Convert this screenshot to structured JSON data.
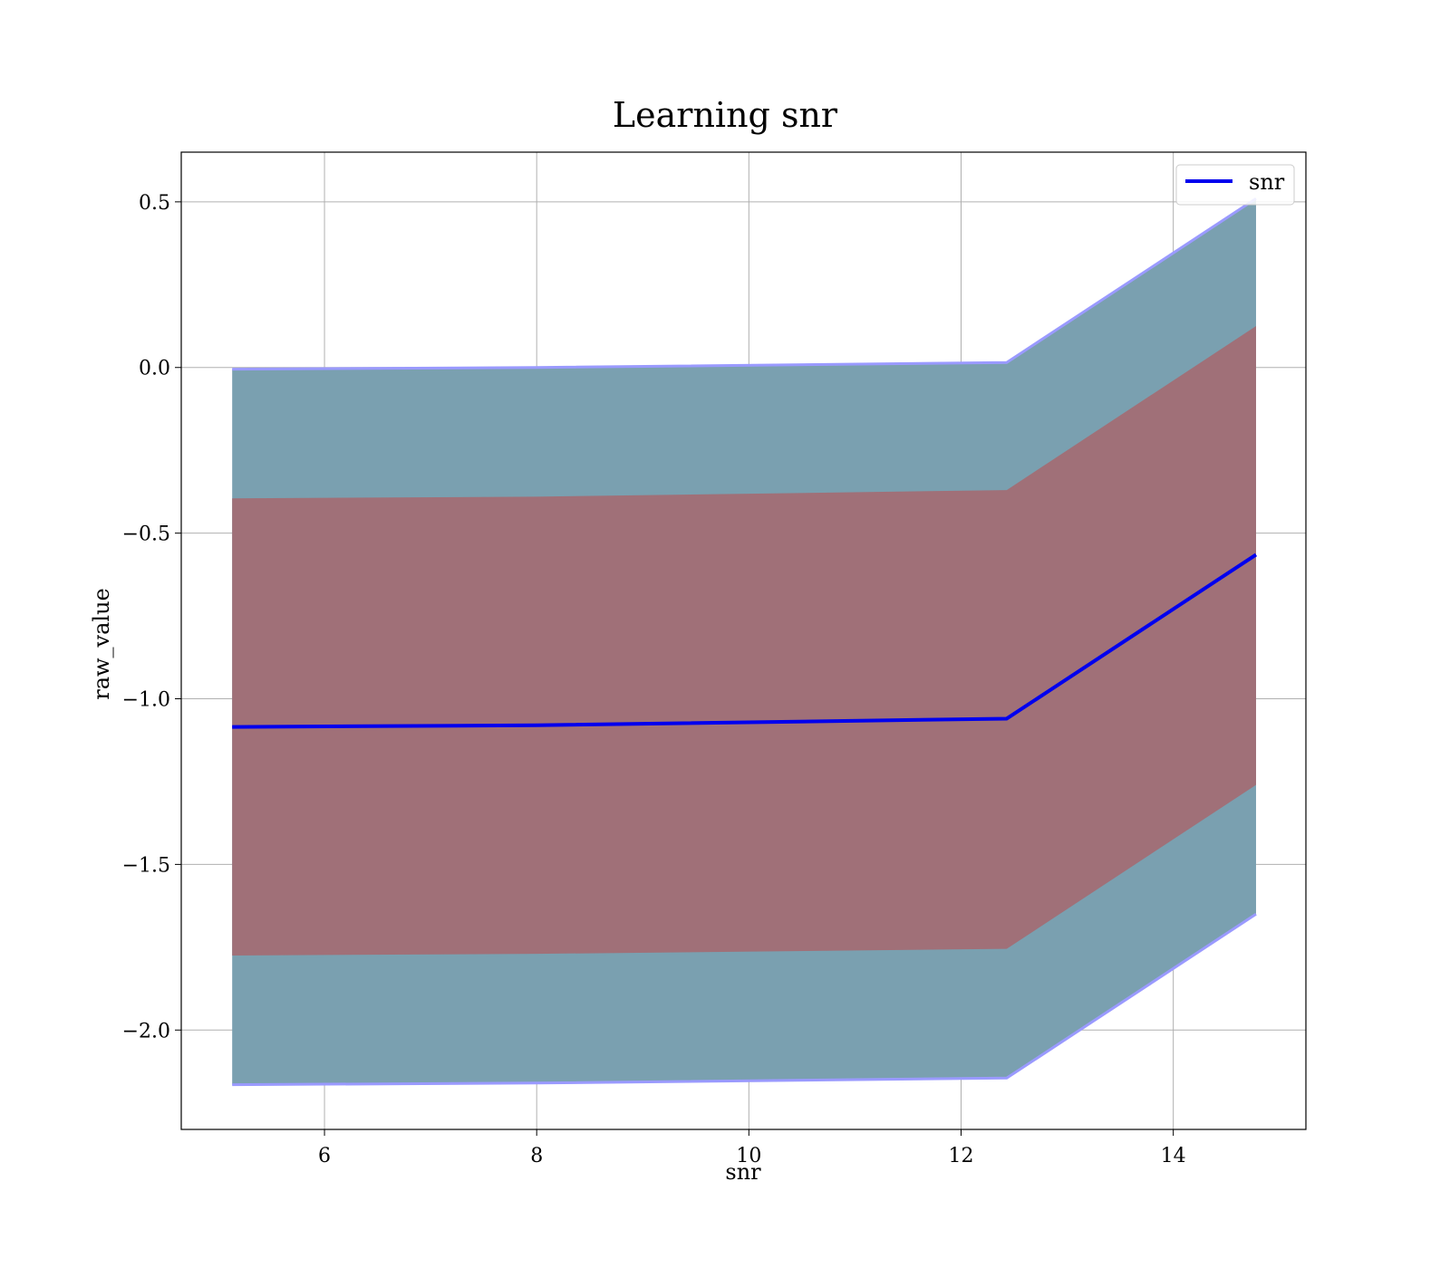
{
  "chart_data": {
    "type": "line",
    "title": "Learning snr",
    "xlabel": "snr",
    "ylabel": "raw_value",
    "xlim": [
      4.65,
      15.25
    ],
    "ylim": [
      -2.3,
      0.65
    ],
    "xticks": [
      6,
      8,
      10,
      12,
      14
    ],
    "yticks": [
      0.5,
      0.0,
      -0.5,
      -1.0,
      -1.5,
      -2.0
    ],
    "xtick_labels": [
      "6",
      "8",
      "10",
      "12",
      "14"
    ],
    "ytick_labels": [
      "0.5",
      "0.0",
      "−0.5",
      "−1.0",
      "−1.5",
      "−2.0"
    ],
    "grid": true,
    "legend": {
      "placement": "top-right",
      "entries": [
        "snr"
      ]
    },
    "x": [
      5.13,
      8.0,
      12.43,
      14.78
    ],
    "series": [
      {
        "name": "snr",
        "color": "#0000ee",
        "values": [
          -1.085,
          -1.08,
          -1.06,
          -0.565
        ]
      }
    ],
    "bands": [
      {
        "kind": "outer",
        "color": "#7aa0b0",
        "edge_color": "#9a9aff",
        "upper": [
          -0.005,
          -0.0,
          0.015,
          0.51
        ],
        "lower": [
          -2.165,
          -2.16,
          -2.145,
          -1.65
        ]
      },
      {
        "kind": "inner",
        "color": "#a07078",
        "upper": [
          -0.395,
          -0.39,
          -0.37,
          0.125
        ],
        "lower": [
          -1.775,
          -1.77,
          -1.755,
          -1.26
        ]
      }
    ]
  }
}
